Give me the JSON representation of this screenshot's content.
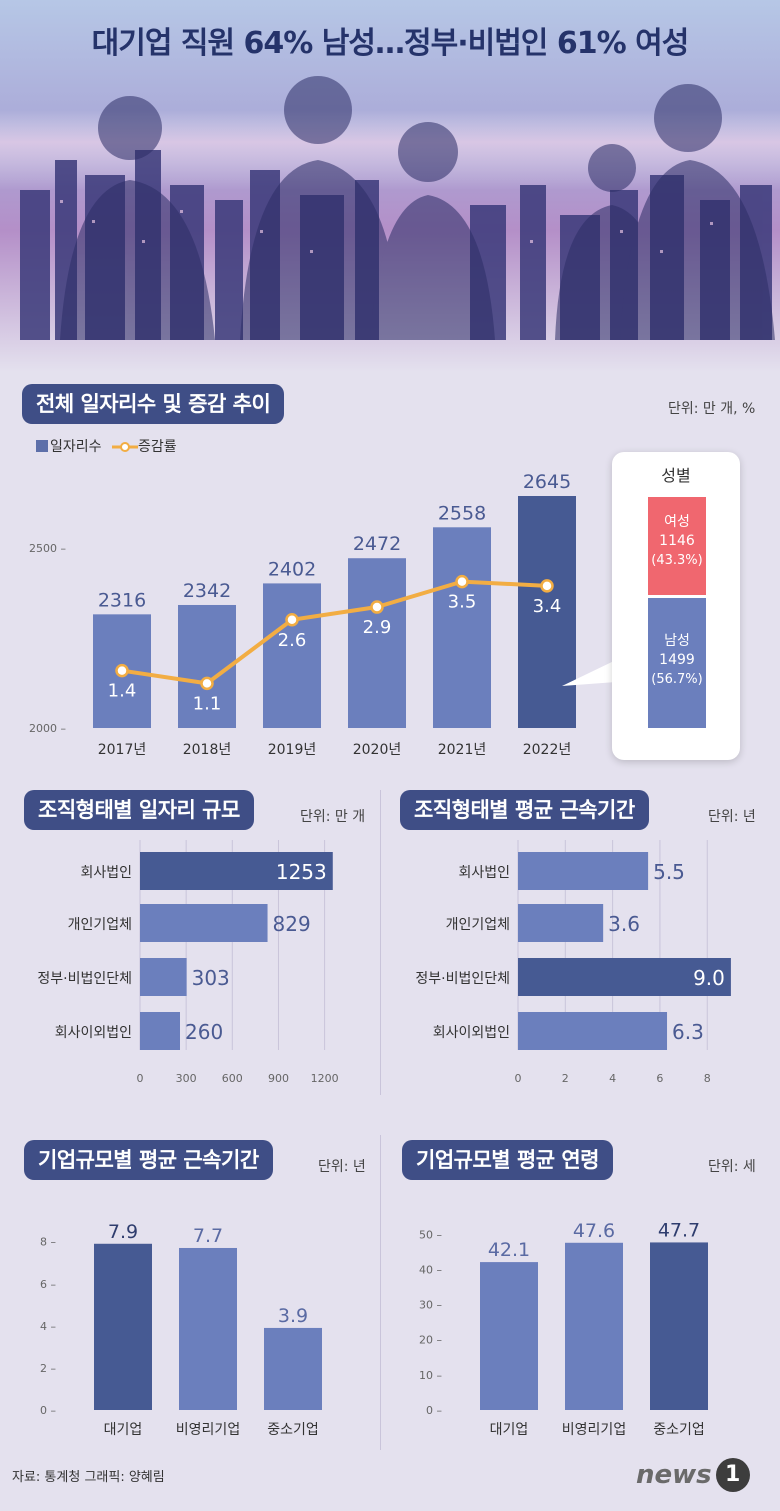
{
  "header": {
    "title": "대기업 직원 64% 남성…정부·비법인 61% 여성"
  },
  "colors": {
    "bar": "#6b7fbd",
    "bar_dark": "#465a93",
    "line": "#f2ad43",
    "female": "#f0676f",
    "male": "#6b7fbd",
    "pill": "#3f4e86"
  },
  "section1": {
    "title": "전체 일자리수 및 증감 추이",
    "unit": "단위: 만 개, %",
    "legend": {
      "bars": "일자리수",
      "line": "증감률"
    }
  },
  "gender": {
    "title": "성별",
    "female": {
      "label": "여성",
      "value": "1146",
      "pct": "(43.3%)"
    },
    "male": {
      "label": "남성",
      "value": "1499",
      "pct": "(56.7%)"
    }
  },
  "section2": {
    "title": "조직형태별 일자리 규모",
    "unit": "단위: 만 개"
  },
  "section3": {
    "title": "조직형태별 평균 근속기간",
    "unit": "단위: 년"
  },
  "section4": {
    "title": "기업규모별 평균 근속기간",
    "unit": "단위: 년"
  },
  "section5": {
    "title": "기업규모별 평균 연령",
    "unit": "단위: 세"
  },
  "footer": {
    "source": "자료: 통계청   그래픽: 양혜림",
    "logo": "news",
    "logo_mark": "1"
  },
  "chart_data": [
    {
      "id": "jobs",
      "type": "bar",
      "title": "전체 일자리수 및 증감 추이",
      "categories": [
        "2017년",
        "2018년",
        "2019년",
        "2020년",
        "2021년",
        "2022년"
      ],
      "series": [
        {
          "name": "일자리수",
          "values": [
            2316,
            2342,
            2402,
            2472,
            2558,
            2645
          ]
        },
        {
          "name": "증감률",
          "type": "line",
          "values": [
            1.4,
            1.1,
            2.6,
            2.9,
            3.5,
            3.4
          ]
        }
      ],
      "ylim": [
        2000,
        2645
      ],
      "yticks": [
        2000,
        2500
      ],
      "value_labels": [
        "2316",
        "2342",
        "2402",
        "2472",
        "2558",
        "2645"
      ],
      "rate_labels": [
        "1.4",
        "1.1",
        "2.6",
        "2.9",
        "3.5",
        "3.4"
      ],
      "highlight_index": 5
    },
    {
      "id": "org_jobs",
      "type": "bar",
      "orientation": "horizontal",
      "title": "조직형태별 일자리 규모",
      "categories": [
        "회사법인",
        "개인기업체",
        "정부·비법인단체",
        "회사이외법인"
      ],
      "values": [
        1253,
        829,
        303,
        260
      ],
      "value_labels": [
        "1253",
        "829",
        "303",
        "260"
      ],
      "xlim": [
        0,
        1300
      ],
      "xticks": [
        0,
        300,
        600,
        900,
        1200
      ],
      "highlight_index": 0
    },
    {
      "id": "org_tenure",
      "type": "bar",
      "orientation": "horizontal",
      "title": "조직형태별 평균 근속기간",
      "categories": [
        "회사법인",
        "개인기업체",
        "정부·비법인단체",
        "회사이외법인"
      ],
      "values": [
        5.5,
        3.6,
        9.0,
        6.3
      ],
      "value_labels": [
        "5.5",
        "3.6",
        "9.0",
        "6.3"
      ],
      "xlim": [
        0,
        9.3
      ],
      "xticks": [
        0,
        2,
        4,
        6,
        8
      ],
      "highlight_index": 2
    },
    {
      "id": "size_tenure",
      "type": "bar",
      "title": "기업규모별 평균 근속기간",
      "categories": [
        "대기업",
        "비영리기업",
        "중소기업"
      ],
      "values": [
        7.9,
        7.7,
        3.9
      ],
      "value_labels": [
        "7.9",
        "7.7",
        "3.9"
      ],
      "ylim": [
        0,
        9.6
      ],
      "yticks": [
        0,
        2,
        4,
        6,
        8
      ],
      "highlight_index": 0
    },
    {
      "id": "size_age",
      "type": "bar",
      "title": "기업규모별 평균 연령",
      "categories": [
        "대기업",
        "비영리기업",
        "중소기업"
      ],
      "values": [
        42.1,
        47.6,
        47.7
      ],
      "value_labels": [
        "42.1",
        "47.6",
        "47.7"
      ],
      "ylim": [
        0,
        57.5
      ],
      "yticks": [
        0,
        10,
        20,
        30,
        40,
        50
      ],
      "highlight_index": 2
    }
  ]
}
